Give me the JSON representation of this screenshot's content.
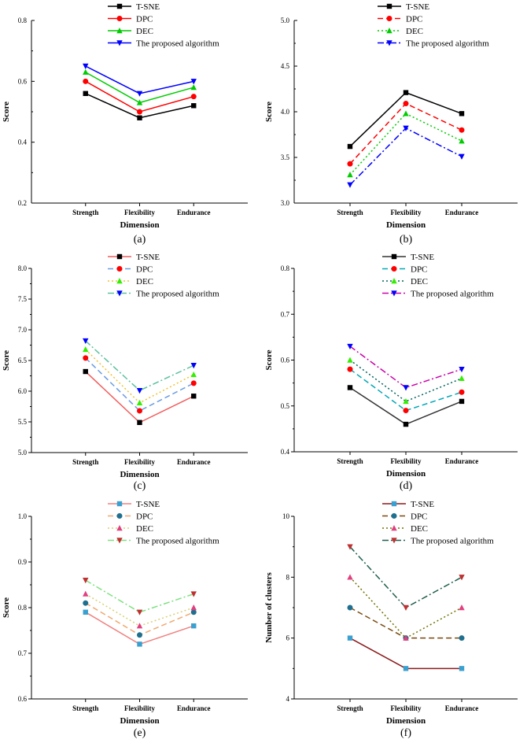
{
  "chart_data": [
    {
      "type": "line",
      "panel": "(a)",
      "categories": [
        "Strength",
        "Flexibility",
        "Endurance"
      ],
      "xlabel": "Dimension",
      "ylabel": "Score",
      "ylim": [
        0.2,
        0.8
      ],
      "yticks": [
        "0.2",
        "0.4",
        "0.6",
        "0.8"
      ],
      "series": [
        {
          "name": "T-SNE",
          "values": [
            0.56,
            0.48,
            0.52
          ],
          "color": "#000000",
          "dash": "solid",
          "marker": "square"
        },
        {
          "name": "DPC",
          "values": [
            0.6,
            0.5,
            0.55
          ],
          "color": "#ff0000",
          "dash": "solid",
          "marker": "circle"
        },
        {
          "name": "DEC",
          "values": [
            0.63,
            0.53,
            0.58
          ],
          "color": "#00cc00",
          "dash": "solid",
          "marker": "triangle-up"
        },
        {
          "name": "The proposed algorithm",
          "values": [
            0.65,
            0.56,
            0.6
          ],
          "color": "#0000ff",
          "dash": "solid",
          "marker": "triangle-down"
        }
      ]
    },
    {
      "type": "line",
      "panel": "(b)",
      "categories": [
        "Strength",
        "Flexibility",
        "Endurance"
      ],
      "xlabel": "Dimension",
      "ylabel": "Score",
      "ylim": [
        3.0,
        5.0
      ],
      "yticks": [
        "3.0",
        "3.5",
        "4.0",
        "4.5",
        "5.0"
      ],
      "series": [
        {
          "name": "T-SNE",
          "values": [
            3.62,
            4.21,
            3.98
          ],
          "color": "#000000",
          "dash": "solid",
          "marker": "square"
        },
        {
          "name": "DPC",
          "values": [
            3.43,
            4.09,
            3.8
          ],
          "color": "#ff0000",
          "dash": "dash",
          "marker": "circle"
        },
        {
          "name": "DEC",
          "values": [
            3.31,
            3.98,
            3.68
          ],
          "color": "#00cc00",
          "dash": "dot",
          "marker": "triangle-up"
        },
        {
          "name": "The proposed algorithm",
          "values": [
            3.2,
            3.82,
            3.51
          ],
          "color": "#0000ff",
          "dash": "dashdot",
          "marker": "triangle-down"
        }
      ]
    },
    {
      "type": "line",
      "panel": "(c)",
      "categories": [
        "Strength",
        "Flexibility",
        "Endurance"
      ],
      "xlabel": "Dimension",
      "ylabel": "Score",
      "ylim": [
        5.0,
        8.0
      ],
      "yticks": [
        "5.0",
        "5.5",
        "6.0",
        "6.5",
        "7.0",
        "7.5",
        "8.0"
      ],
      "series": [
        {
          "name": "T-SNE",
          "values": [
            6.32,
            5.49,
            5.92
          ],
          "color": "#ff0000",
          "line_color": "#f25c5c",
          "dash": "solid",
          "marker": "square",
          "marker_color": "#000000"
        },
        {
          "name": "DPC",
          "values": [
            6.54,
            5.68,
            6.13
          ],
          "color": "#ff0000",
          "line_color": "#6a9be0",
          "dash": "dash",
          "marker": "circle",
          "marker_color": "#ff0000"
        },
        {
          "name": "DEC",
          "values": [
            6.68,
            5.81,
            6.27
          ],
          "color": "#00ee00",
          "line_color": "#f2c030",
          "dash": "dot",
          "marker": "triangle-up",
          "marker_color": "#33ee00"
        },
        {
          "name": "The proposed algorithm",
          "values": [
            6.82,
            6.01,
            6.42
          ],
          "color": "#0000ff",
          "line_color": "#5cc0a0",
          "dash": "dashdot",
          "marker": "triangle-down",
          "marker_color": "#0000ff"
        }
      ]
    },
    {
      "type": "line",
      "panel": "(d)",
      "categories": [
        "Strength",
        "Flexibility",
        "Endurance"
      ],
      "xlabel": "Dimension",
      "ylabel": "Score",
      "ylim": [
        0.4,
        0.8
      ],
      "yticks": [
        "0.4",
        "0.5",
        "0.6",
        "0.7",
        "0.8"
      ],
      "series": [
        {
          "name": "T-SNE",
          "values": [
            0.54,
            0.46,
            0.51
          ],
          "color": "#000000",
          "line_color": "#333333",
          "dash": "solid",
          "marker": "square",
          "marker_color": "#000000"
        },
        {
          "name": "DPC",
          "values": [
            0.58,
            0.49,
            0.53
          ],
          "color": "#ff0000",
          "line_color": "#00a8b8",
          "dash": "dash",
          "marker": "circle",
          "marker_color": "#ff0000"
        },
        {
          "name": "DEC",
          "values": [
            0.6,
            0.51,
            0.56
          ],
          "color": "#00dd00",
          "line_color": "#006060",
          "dash": "dot",
          "marker": "triangle-up",
          "marker_color": "#33ee00"
        },
        {
          "name": "The proposed algorithm",
          "values": [
            0.63,
            0.54,
            0.58
          ],
          "color": "#0000ff",
          "line_color": "#cc00aa",
          "dash": "dashdot",
          "marker": "triangle-down",
          "marker_color": "#0000ff"
        }
      ]
    },
    {
      "type": "line",
      "panel": "(e)",
      "categories": [
        "Strength",
        "Flexibility",
        "Endurance"
      ],
      "xlabel": "Dimension",
      "ylabel": "Score",
      "ylim": [
        0.6,
        1.0
      ],
      "yticks": [
        "0.6",
        "0.7",
        "0.8",
        "0.9",
        "1.0"
      ],
      "series": [
        {
          "name": "T-SNE",
          "values": [
            0.79,
            0.72,
            0.76
          ],
          "color": "#3aa0d0",
          "line_color": "#f08080",
          "dash": "solid",
          "marker": "square",
          "marker_color": "#3aa0d0"
        },
        {
          "name": "DPC",
          "values": [
            0.81,
            0.74,
            0.79
          ],
          "color": "#1f6f8f",
          "line_color": "#f0a870",
          "dash": "dash",
          "marker": "circle",
          "marker_color": "#1f6f8f"
        },
        {
          "name": "DEC",
          "values": [
            0.83,
            0.76,
            0.8
          ],
          "color": "#e04080",
          "line_color": "#d8d070",
          "dash": "dot",
          "marker": "triangle-up",
          "marker_color": "#e04080"
        },
        {
          "name": "The proposed algorithm",
          "values": [
            0.86,
            0.79,
            0.83
          ],
          "color": "#c03030",
          "line_color": "#80e080",
          "dash": "dashdot",
          "marker": "triangle-down",
          "marker_color": "#c03030"
        }
      ]
    },
    {
      "type": "line",
      "panel": "(f)",
      "categories": [
        "Strength",
        "Flexibility",
        "Endurance"
      ],
      "xlabel": "Dimension",
      "ylabel": "Number of clusters",
      "ylim": [
        4,
        10
      ],
      "yticks": [
        "4",
        "6",
        "8",
        "10"
      ],
      "series": [
        {
          "name": "T-SNE",
          "values": [
            6,
            5,
            5
          ],
          "color": "#3aa0d0",
          "line_color": "#8b1a1a",
          "dash": "solid",
          "marker": "square",
          "marker_color": "#3aa0d0"
        },
        {
          "name": "DPC",
          "values": [
            7,
            6,
            6
          ],
          "color": "#1f6f8f",
          "line_color": "#7a4a10",
          "dash": "dash",
          "marker": "circle",
          "marker_color": "#1f6f8f"
        },
        {
          "name": "DEC",
          "values": [
            8,
            6,
            7
          ],
          "color": "#e04080",
          "line_color": "#707000",
          "dash": "dot",
          "marker": "triangle-up",
          "marker_color": "#e04080"
        },
        {
          "name": "The proposed algorithm",
          "values": [
            9,
            7,
            8
          ],
          "color": "#c03030",
          "line_color": "#1f5f4f",
          "dash": "dashdot",
          "marker": "triangle-down",
          "marker_color": "#c03030"
        }
      ]
    }
  ]
}
